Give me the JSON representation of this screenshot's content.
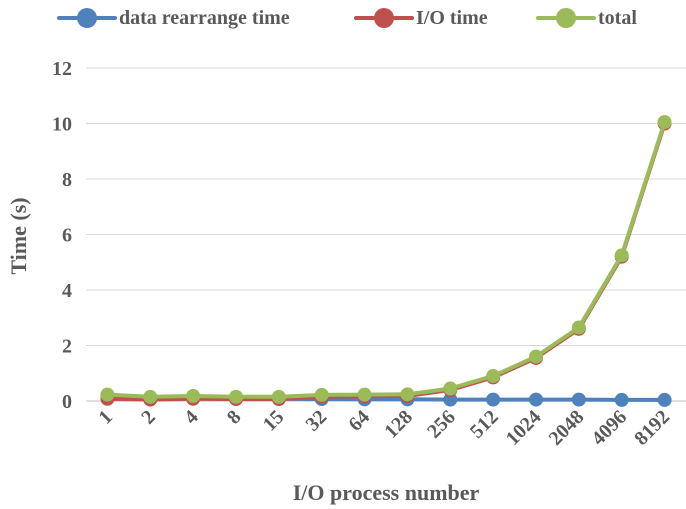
{
  "chart_data": {
    "type": "line",
    "title": "",
    "xlabel": "I/O process number",
    "ylabel": "Time (s)",
    "categories": [
      "1",
      "2",
      "4",
      "8",
      "15",
      "32",
      "64",
      "128",
      "256",
      "512",
      "1024",
      "2048",
      "4096",
      "8192"
    ],
    "ylim": [
      0,
      12
    ],
    "yticks": [
      "0",
      "2",
      "4",
      "6",
      "8",
      "10",
      "12"
    ],
    "grid": true,
    "legend_position": "top",
    "series": [
      {
        "name": "data rearrange time",
        "color": "#4f81bd",
        "values": [
          0.15,
          0.1,
          0.1,
          0.08,
          0.08,
          0.07,
          0.06,
          0.06,
          0.05,
          0.05,
          0.05,
          0.05,
          0.04,
          0.04
        ]
      },
      {
        "name": "I/O time",
        "color": "#c0504d",
        "values": [
          0.08,
          0.05,
          0.08,
          0.07,
          0.07,
          0.15,
          0.17,
          0.18,
          0.4,
          0.85,
          1.55,
          2.6,
          5.2,
          10.0
        ]
      },
      {
        "name": "total",
        "color": "#9bbb59",
        "values": [
          0.23,
          0.15,
          0.18,
          0.15,
          0.15,
          0.22,
          0.23,
          0.24,
          0.45,
          0.9,
          1.6,
          2.65,
          5.25,
          10.05
        ]
      }
    ]
  }
}
